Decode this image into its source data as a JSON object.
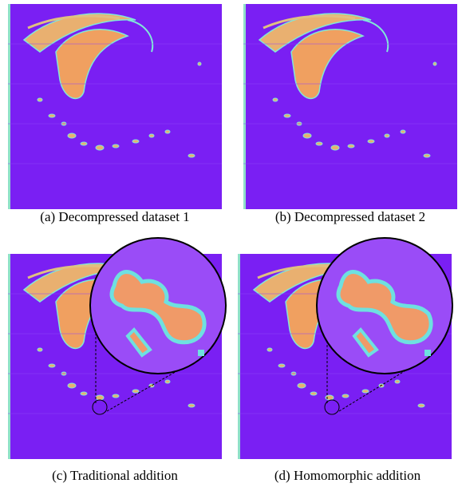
{
  "panels": [
    {
      "caption": "(a) Decompressed dataset 1"
    },
    {
      "caption": "(b) Decompressed dataset 2"
    },
    {
      "caption": "(c) Traditional addition"
    },
    {
      "caption": "(d) Homomorphic addition"
    }
  ]
}
